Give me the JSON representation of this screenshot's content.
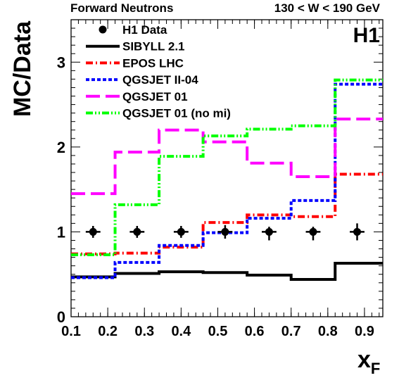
{
  "chart_data": {
    "type": "line",
    "header_left": "Forward Neutrons",
    "header_right": "130 < W < 190 GeV",
    "experiment_label": "H1",
    "ylabel": "MC/Data",
    "xlabel_main": "x",
    "xlabel_sub": "F",
    "xlim": [
      0.1,
      0.95
    ],
    "ylim": [
      0,
      3.5
    ],
    "xticks": [
      "0.1",
      "0.2",
      "0.3",
      "0.4",
      "0.5",
      "0.6",
      "0.7",
      "0.8",
      "0.9"
    ],
    "xtick_values": [
      0.1,
      0.2,
      0.3,
      0.4,
      0.5,
      0.6,
      0.7,
      0.8,
      0.9
    ],
    "yticks": [
      "0",
      "1",
      "2",
      "3"
    ],
    "ytick_values": [
      0,
      1,
      2,
      3
    ],
    "bin_edges": [
      0.1,
      0.22,
      0.34,
      0.46,
      0.58,
      0.7,
      0.82,
      0.95
    ],
    "data_series": {
      "name": "H1 Data",
      "x": [
        0.16,
        0.28,
        0.4,
        0.52,
        0.64,
        0.76,
        0.88
      ],
      "y": [
        1,
        1,
        1,
        1,
        1,
        1,
        1
      ],
      "err_low": [
        0.07,
        0.07,
        0.07,
        0.08,
        0.1,
        0.1,
        0.1
      ],
      "err_high": [
        0.07,
        0.07,
        0.07,
        0.08,
        0.06,
        0.06,
        0.1
      ],
      "xerr": [
        0.02,
        0.02,
        0.02,
        0.02,
        0.02,
        0.02,
        0.02
      ]
    },
    "series": [
      {
        "name": "SIBYLL 2.1",
        "color": "#000000",
        "style": "solid",
        "values": [
          0.47,
          0.51,
          0.53,
          0.52,
          0.49,
          0.44,
          0.63
        ]
      },
      {
        "name": "EPOS LHC",
        "color": "#ff0000",
        "style": "dashdot",
        "values": [
          0.74,
          0.75,
          0.82,
          1.11,
          1.2,
          1.18,
          1.68
        ]
      },
      {
        "name": "QGSJET II-04",
        "color": "#0000ff",
        "style": "dotted",
        "values": [
          0.46,
          0.64,
          0.84,
          0.99,
          1.16,
          1.37,
          2.74
        ]
      },
      {
        "name": "QGSJET 01",
        "color": "#ff00ff",
        "style": "longdash",
        "values": [
          1.45,
          1.94,
          2.2,
          2.06,
          1.81,
          1.65,
          2.33
        ]
      },
      {
        "name": "QGSJET 01 (no mi)",
        "color": "#00ff00",
        "style": "dashdotdot",
        "values": [
          0.73,
          1.32,
          1.89,
          2.13,
          2.21,
          2.25,
          2.79
        ]
      }
    ]
  }
}
